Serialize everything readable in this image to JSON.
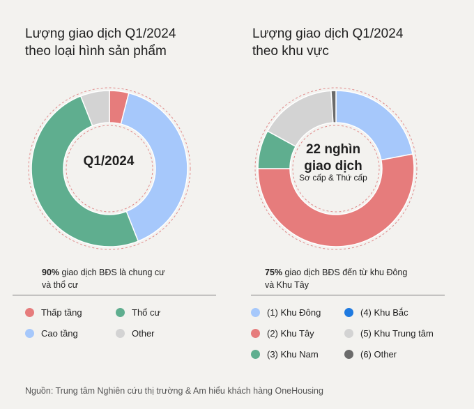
{
  "left": {
    "title_line1": "Lượng giao dịch Q1/2024",
    "title_line2": "theo loại hình sản phẩm",
    "center_label": "Q1/2024",
    "note_bold": "90%",
    "note_text": " giao dịch BĐS là chung cư",
    "note_line2": "và thổ cư",
    "legend": [
      {
        "label": "Thấp tầng",
        "color": "#e67c7c"
      },
      {
        "label": "Thổ cư",
        "color": "#5fae8f"
      },
      {
        "label": "Cao tầng",
        "color": "#a6c8fb"
      },
      {
        "label": "Other",
        "color": "#d3d3d3"
      }
    ]
  },
  "right": {
    "title_line1": "Lượng giao dịch Q1/2024",
    "title_line2": "theo khu vực",
    "center_line1": "22 nghìn",
    "center_line2": "giao dịch",
    "center_sub": "Sơ cấp & Thứ cấp",
    "note_bold": "75%",
    "note_text": " giao dịch BĐS đến từ khu Đông",
    "note_line2": "và Khu Tây",
    "legend": [
      {
        "label": "(1) Khu Đông",
        "color": "#a6c8fb"
      },
      {
        "label": "(4) Khu Bắc",
        "color": "#1f7ae0"
      },
      {
        "label": "(2) Khu Tây",
        "color": "#e67c7c"
      },
      {
        "label": "(5) Khu Trung tâm",
        "color": "#d3d3d3"
      },
      {
        "label": "(3) Khu Nam",
        "color": "#5fae8f"
      },
      {
        "label": "(6) Other",
        "color": "#6b6b6b"
      }
    ]
  },
  "source": "Nguồn: Trung tâm Nghiên cứu thị trường & Am hiểu khách hàng OneHousing",
  "chart_data": [
    {
      "type": "pie",
      "title": "Lượng giao dịch Q1/2024 theo loại hình sản phẩm",
      "categories": [
        "Thấp tầng",
        "Cao tầng",
        "Thổ cư",
        "Other"
      ],
      "values": [
        4,
        40,
        50,
        6
      ],
      "colors": [
        "#e67c7c",
        "#a6c8fb",
        "#5fae8f",
        "#d3d3d3"
      ]
    },
    {
      "type": "pie",
      "title": "Lượng giao dịch Q1/2024 theo khu vực",
      "categories": [
        "(1) Khu Đông",
        "(2) Khu Tây",
        "(3) Khu Nam",
        "(5) Khu Trung tâm",
        "(6) Other"
      ],
      "values": [
        22,
        53,
        8,
        16,
        1
      ],
      "colors": [
        "#a6c8fb",
        "#e67c7c",
        "#5fae8f",
        "#d3d3d3",
        "#6b6b6b"
      ]
    }
  ]
}
